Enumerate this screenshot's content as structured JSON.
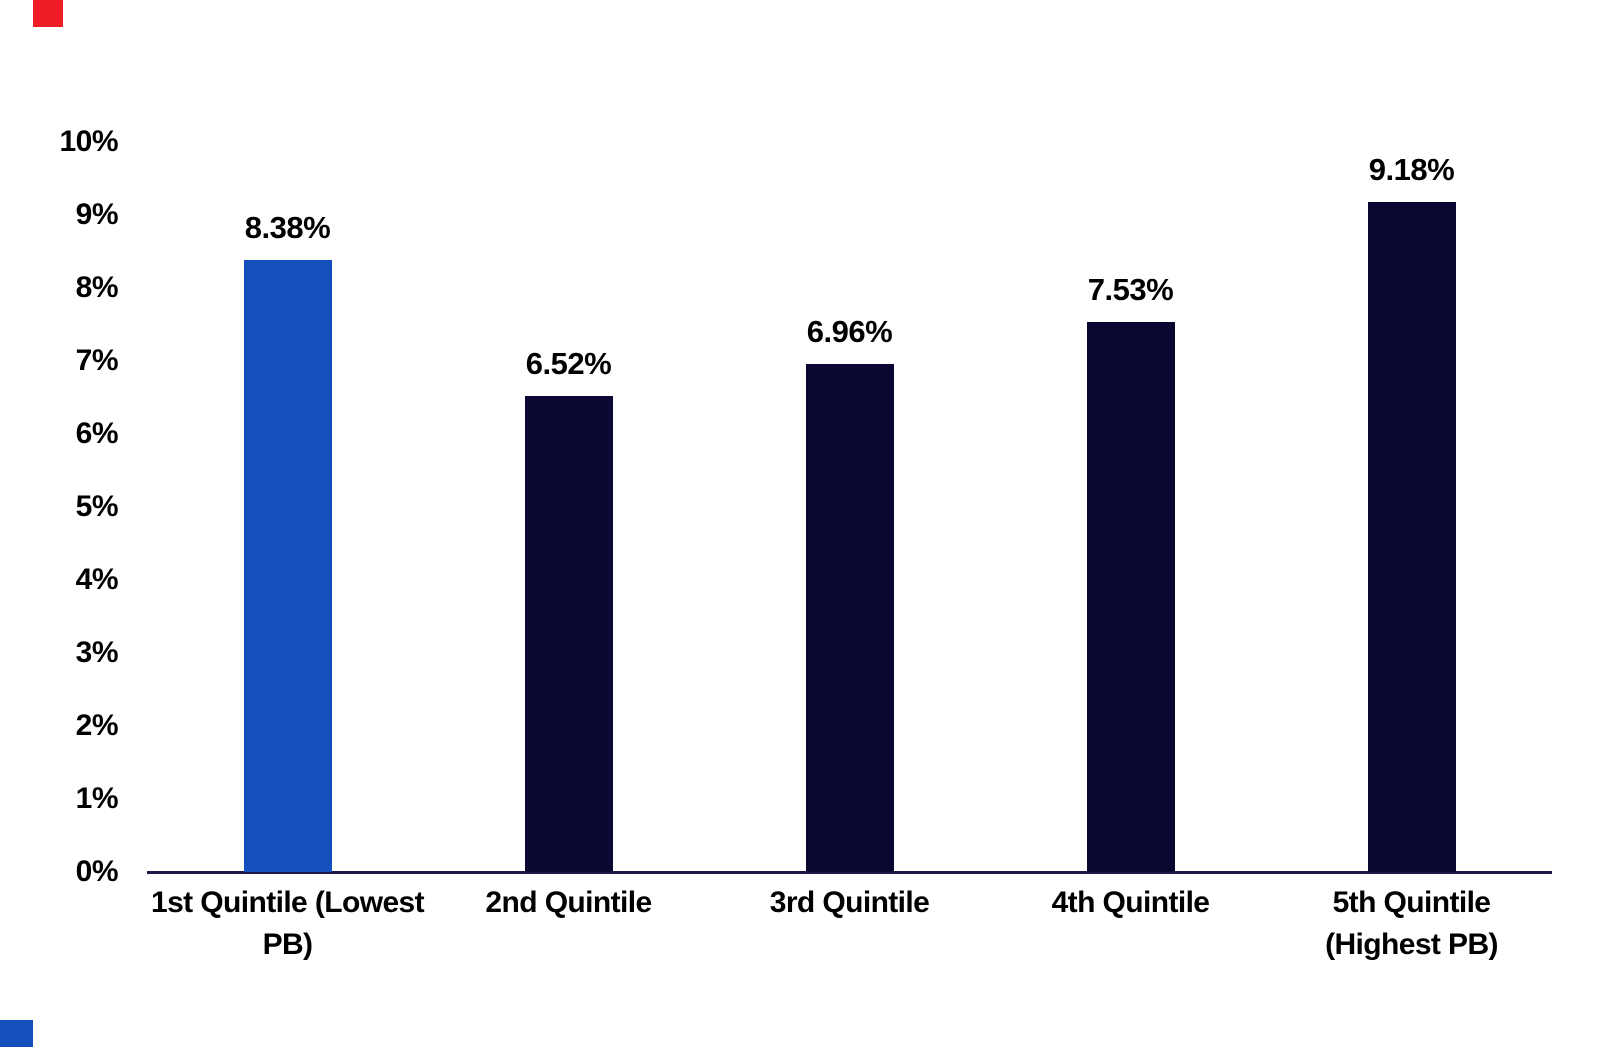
{
  "chart_data": {
    "type": "bar",
    "title": "",
    "xlabel": "",
    "ylabel": "",
    "categories": [
      "1st Quintile (Lowest PB)",
      "2nd Quintile",
      "3rd Quintile",
      "4th Quintile",
      "5th Quintile (Highest PB)"
    ],
    "category_display_lines": [
      [
        "1st Quintile (Lowest",
        "PB)"
      ],
      [
        "2nd Quintile"
      ],
      [
        "3rd Quintile"
      ],
      [
        "4th Quintile"
      ],
      [
        "5th Quintile",
        "(Highest PB)"
      ]
    ],
    "values": [
      8.38,
      6.52,
      6.96,
      7.53,
      9.18
    ],
    "value_labels": [
      "8.38%",
      "6.52%",
      "6.96%",
      "7.53%",
      "9.18%"
    ],
    "ylim": [
      0,
      10
    ],
    "ytick_step": 1,
    "ytick_labels": [
      "0%",
      "1%",
      "2%",
      "3%",
      "4%",
      "5%",
      "6%",
      "7%",
      "8%",
      "9%",
      "10%"
    ],
    "grid": false,
    "legend_position": "none",
    "bar_colors": [
      "#1450BC",
      "#0B0733",
      "#0B0733",
      "#0B0733",
      "#0B0733"
    ],
    "highlight_index": 0
  },
  "colors": {
    "background": "#FFFFFF",
    "bar_highlight": "#1450BC",
    "bar_default": "#0B0733",
    "axis_line": "#1D1849",
    "label_text": "#000000",
    "corner_accent_red": "#EE1C25",
    "corner_accent_blue": "#1450BC"
  },
  "decorations": {
    "top_left_mark": "red-rectangle",
    "bottom_left_mark": "blue-rectangle"
  }
}
